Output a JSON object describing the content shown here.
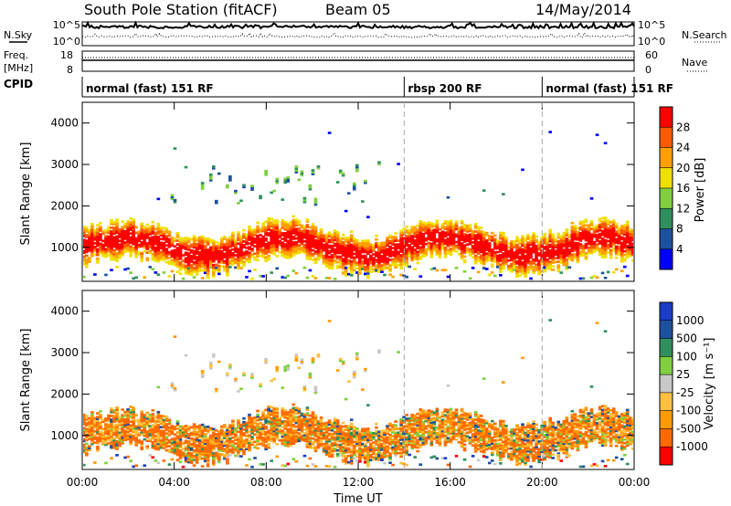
{
  "header": {
    "station": "South Pole Station (fitACF)",
    "beam": "Beam 05",
    "date": "14/May/2014"
  },
  "noise_panel": {
    "left_label": "N.Sky",
    "right_label": "N.Search",
    "left_ticks": [
      "10^5",
      "10^0"
    ],
    "right_ticks": [
      "10^5",
      "10^0"
    ]
  },
  "freq_panel": {
    "left_label_1": "Freq.",
    "left_label_2": "[MHz]",
    "right_label": "Nave",
    "left_ticks": [
      "18",
      "8"
    ],
    "right_ticks": [
      "60",
      "0"
    ]
  },
  "cpid": {
    "label": "CPID",
    "segments": [
      {
        "label": "normal (fast) 151 RF",
        "start_h": 0,
        "end_h": 14
      },
      {
        "label": "rbsp 200 RF",
        "start_h": 14,
        "end_h": 20
      },
      {
        "label": "normal (fast) 151 RF",
        "start_h": 20,
        "end_h": 24
      }
    ]
  },
  "x_axis": {
    "label": "Time UT",
    "ticks": [
      "00:00",
      "04:00",
      "08:00",
      "12:00",
      "16:00",
      "20:00",
      "00:00"
    ]
  },
  "chart_data": [
    {
      "type": "heatmap",
      "title": "",
      "ylabel": "Slant Range [km]",
      "xlabel": "Time UT",
      "xlim_hours": [
        0,
        24
      ],
      "ylim": [
        180,
        4500
      ],
      "yticks": [
        1000,
        2000,
        3000,
        4000
      ],
      "colorbar_label": "Power [dB]",
      "colorbar_ticks": [
        "28",
        "24",
        "20",
        "16",
        "12",
        "8",
        "4"
      ],
      "colorscale": [
        "#0000ff",
        "#1e50a0",
        "#2f8f5e",
        "#7fcf3f",
        "#f0e000",
        "#ffa000",
        "#ff5a00",
        "#ff0000"
      ],
      "bands": [
        {
          "name": "main echo band",
          "x_hours": [
            0,
            24
          ],
          "range_km": [
            600,
            1600
          ],
          "power_db": [
            16,
            30
          ]
        },
        {
          "name": "upper patches",
          "x_hours": [
            4,
            13
          ],
          "range_km": [
            2000,
            3000
          ],
          "power_db": [
            4,
            16
          ]
        },
        {
          "name": "low range echoes",
          "x_hours": [
            0,
            24
          ],
          "range_km": [
            200,
            600
          ],
          "power_db": [
            8,
            24
          ]
        }
      ]
    },
    {
      "type": "heatmap",
      "title": "",
      "ylabel": "Slant Range [km]",
      "xlabel": "Time UT",
      "xlim_hours": [
        0,
        24
      ],
      "ylim": [
        180,
        4500
      ],
      "yticks": [
        1000,
        2000,
        3000,
        4000
      ],
      "colorbar_label": "Velocity [m s⁻¹]",
      "colorbar_ticks": [
        "1000",
        "500",
        "100",
        "25",
        "-25",
        "-100",
        "-500",
        "-1000"
      ],
      "colorscale": [
        "#ff0000",
        "#ff6a00",
        "#ff9a00",
        "#ffc040",
        "#c8c8c8",
        "#7fcf3f",
        "#2f8f5e",
        "#1e50a0",
        "#1a3cc8"
      ],
      "bands": [
        {
          "name": "main echo band",
          "x_hours": [
            0,
            24
          ],
          "range_km": [
            600,
            1600
          ],
          "velocity_ms": [
            -500,
            100
          ]
        },
        {
          "name": "upper patches",
          "x_hours": [
            4,
            13
          ],
          "range_km": [
            2000,
            3000
          ],
          "velocity_ms": [
            -100,
            100
          ]
        }
      ]
    }
  ]
}
